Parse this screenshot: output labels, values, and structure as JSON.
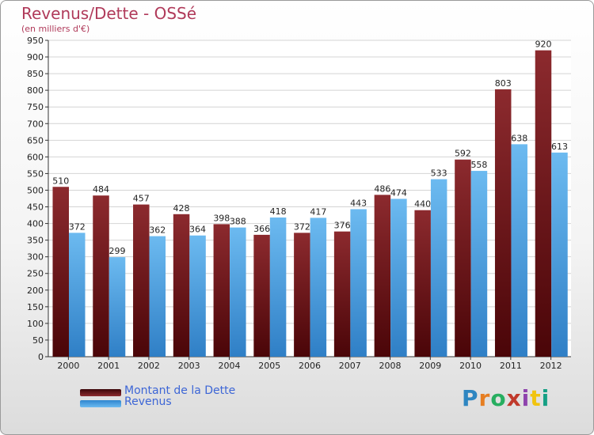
{
  "chart_data": {
    "type": "bar",
    "title": "Revenus/Dette - OSSé",
    "subtitle": "(en milliers d'€)",
    "categories": [
      "2000",
      "2001",
      "2002",
      "2003",
      "2004",
      "2005",
      "2006",
      "2007",
      "2008",
      "2009",
      "2010",
      "2011",
      "2012"
    ],
    "series": [
      {
        "name": "Montant de la Dette",
        "color": "#6e1418",
        "values": [
          510,
          484,
          457,
          428,
          398,
          366,
          372,
          376,
          486,
          440,
          592,
          803,
          920
        ]
      },
      {
        "name": "Revenus",
        "color": "#4aa3e6",
        "values": [
          372,
          299,
          362,
          364,
          388,
          418,
          417,
          443,
          474,
          533,
          558,
          638,
          613
        ]
      }
    ],
    "ylim": [
      0,
      950
    ],
    "ytick_step": 50,
    "yticks": [
      "0",
      "50",
      "100",
      "150",
      "200",
      "250",
      "300",
      "350",
      "400",
      "450",
      "500",
      "550",
      "600",
      "650",
      "700",
      "750",
      "800",
      "850",
      "900",
      "950"
    ],
    "grid": true,
    "legend_position": "bottom-left"
  },
  "brand": {
    "logo_letters": [
      "P",
      "r",
      "o",
      "x",
      "i",
      "t",
      "i"
    ],
    "logo_colors": [
      "#2e86c1",
      "#e67e22",
      "#27ae60",
      "#c0392b",
      "#8e44ad",
      "#f1c40f",
      "#16a085"
    ]
  }
}
